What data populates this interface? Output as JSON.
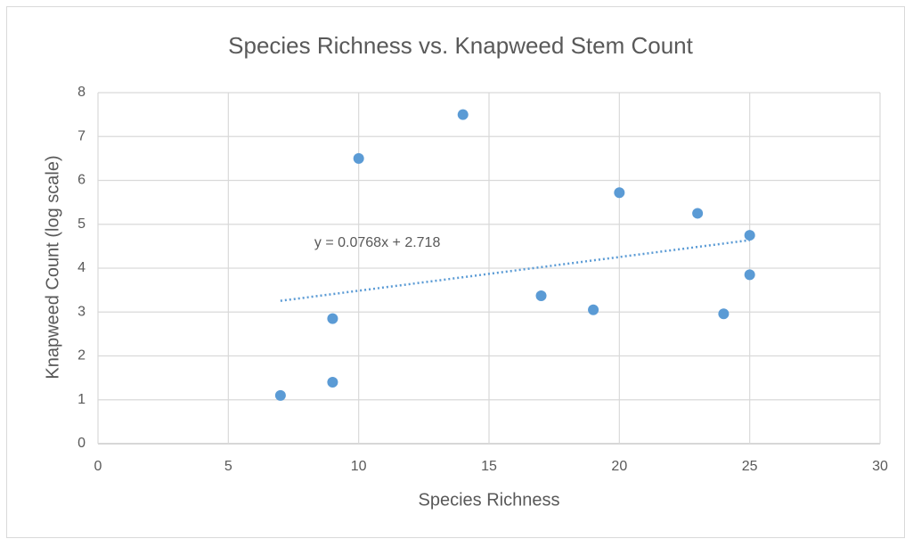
{
  "chart_data": {
    "type": "scatter",
    "title": "Species Richness vs. Knapweed Stem Count",
    "xlabel": "Species Richness",
    "ylabel": "Knapweed Count (log scale)",
    "series": [
      {
        "name": "Knapweed Count",
        "color": "#5b9bd5",
        "x": [
          7,
          9,
          9,
          10,
          14,
          17,
          19,
          20,
          23,
          24,
          25,
          25
        ],
        "values": [
          1.1,
          1.4,
          2.85,
          6.5,
          7.5,
          3.37,
          3.05,
          5.72,
          5.25,
          2.96,
          4.75,
          3.85
        ]
      }
    ],
    "trendline": {
      "label": "y = 0.0768x + 2.718",
      "slope": 0.0768,
      "intercept": 2.718
    },
    "xlim": [
      0,
      30
    ],
    "xticks": [
      0,
      5,
      10,
      15,
      20,
      25,
      30
    ],
    "ylim": [
      0,
      8
    ],
    "yticks": [
      0,
      1,
      2,
      3,
      4,
      5,
      6,
      7,
      8
    ],
    "grid": true
  }
}
